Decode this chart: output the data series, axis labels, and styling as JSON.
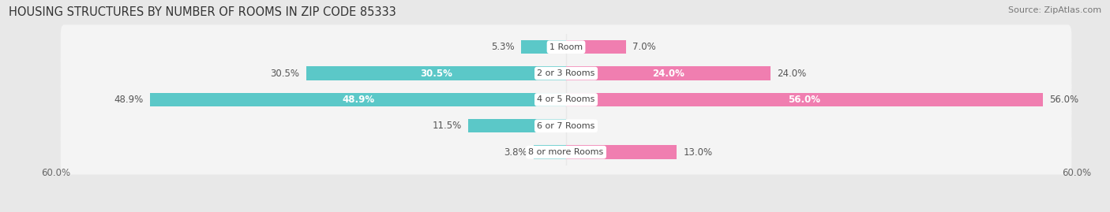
{
  "title": "HOUSING STRUCTURES BY NUMBER OF ROOMS IN ZIP CODE 85333",
  "source": "Source: ZipAtlas.com",
  "categories": [
    "1 Room",
    "2 or 3 Rooms",
    "4 or 5 Rooms",
    "6 or 7 Rooms",
    "8 or more Rooms"
  ],
  "owner_values": [
    5.3,
    30.5,
    48.9,
    11.5,
    3.8
  ],
  "renter_values": [
    7.0,
    24.0,
    56.0,
    0.0,
    13.0
  ],
  "owner_color": "#5BC8C8",
  "renter_color": "#F07EB0",
  "axis_limit": 60.0,
  "bg_color": "#e8e8e8",
  "row_bg_color": "#f4f4f4",
  "bar_height": 0.52,
  "title_fontsize": 10.5,
  "source_fontsize": 8,
  "value_fontsize": 8.5,
  "cat_fontsize": 8,
  "tick_fontsize": 8.5,
  "owner_text_threshold": 20.0,
  "renter_text_threshold": 20.0
}
